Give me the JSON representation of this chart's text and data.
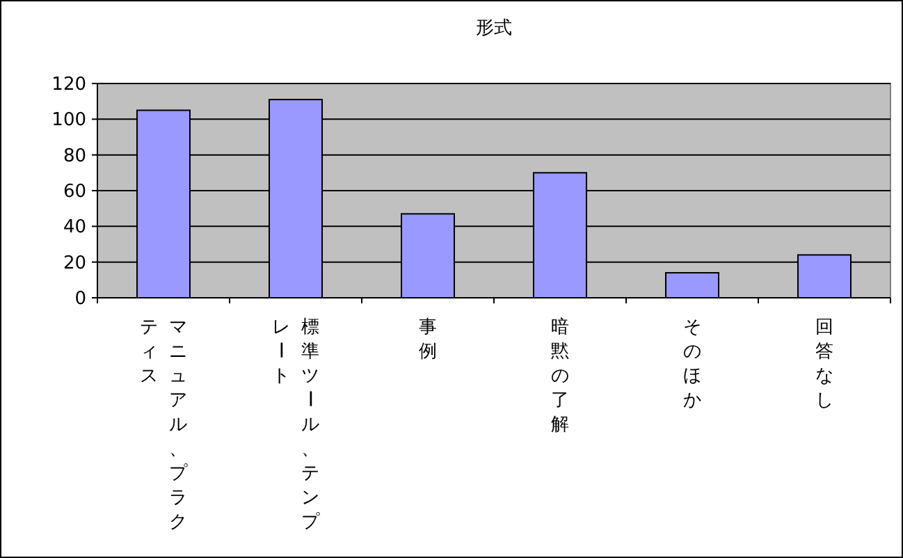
{
  "chart_data": {
    "type": "bar",
    "title": "形式",
    "categories": [
      "マニュアル、プラクティス",
      "標準ツール、テンプレート",
      "事例",
      "暗黙の了解",
      "そのほか",
      "回答なし"
    ],
    "values": [
      105,
      111,
      47,
      70,
      14,
      24
    ],
    "color": "#9999ff",
    "ylim": [
      0,
      120
    ],
    "yticks": [
      0,
      20,
      40,
      60,
      80,
      100,
      120
    ],
    "grid": "y"
  }
}
